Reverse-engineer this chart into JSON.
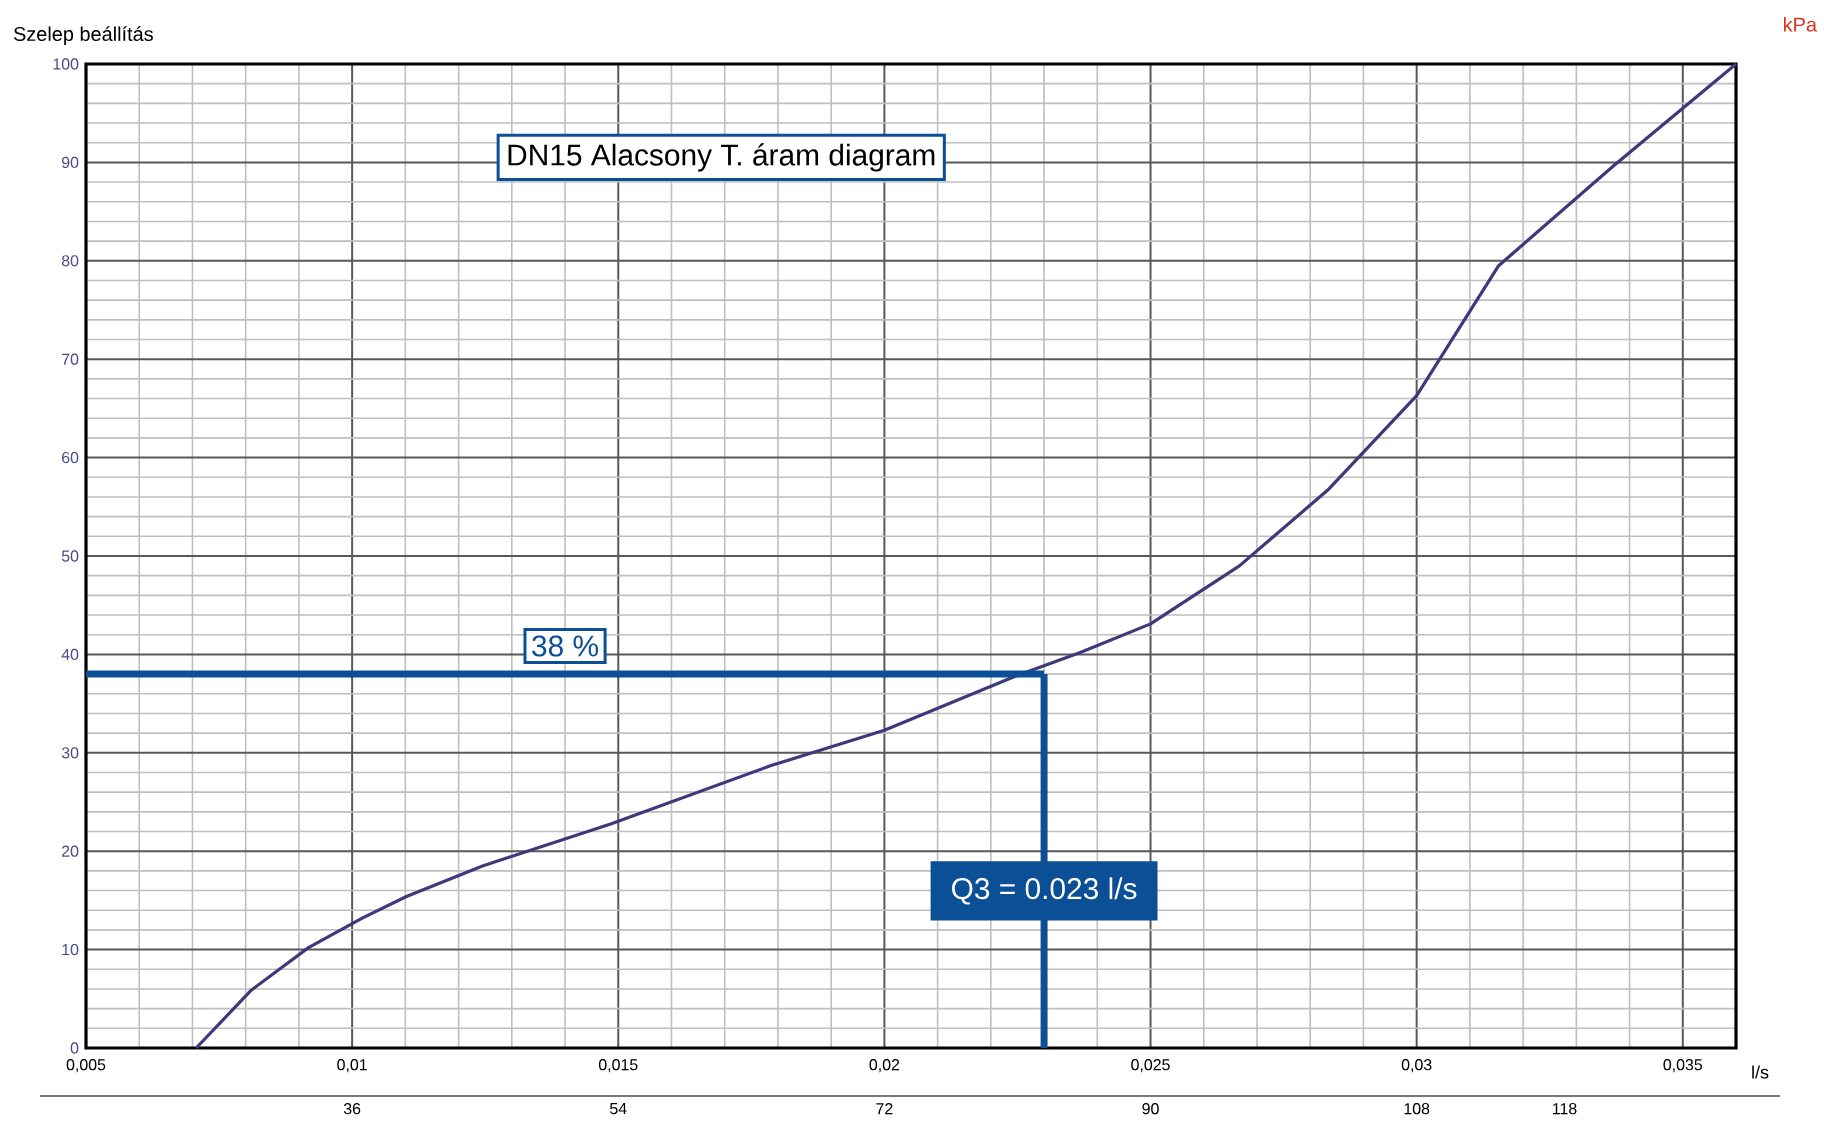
{
  "chart_data": {
    "type": "line",
    "title": "DN15 Alacsony T. áram diagram",
    "ylabel": "Szelep beállítás",
    "xlabel": "l/s",
    "xlim": [
      0.005,
      0.036
    ],
    "xticks": [
      {
        "value": 0.005,
        "label": "0,005"
      },
      {
        "value": 0.01,
        "label": "0,01"
      },
      {
        "value": 0.015,
        "label": "0,015"
      },
      {
        "value": 0.02,
        "label": "0,02"
      },
      {
        "value": 0.025,
        "label": "0,025"
      },
      {
        "value": 0.03,
        "label": "0,03"
      },
      {
        "value": 0.035,
        "label": "0,035"
      }
    ],
    "x2lim": [
      18,
      129.6
    ],
    "x2ticks": [
      36,
      54,
      72,
      90,
      108,
      118
    ],
    "ylim": [
      0,
      100
    ],
    "yticks": [
      0,
      10,
      20,
      30,
      40,
      50,
      60,
      70,
      80,
      90,
      100
    ],
    "grid": true,
    "line_style": "solid",
    "series": [
      {
        "color": "#3c3a7a",
        "x": [
          0.00707,
          0.00811,
          0.00918,
          0.01019,
          0.01102,
          0.01245,
          0.01487,
          0.01787,
          0.02,
          0.02247,
          0.02368,
          0.025,
          0.02667,
          0.02833,
          0.03,
          0.03154,
          0.03369,
          0.036
        ],
        "values": [
          0,
          5.9,
          10.2,
          13.2,
          15.4,
          18.5,
          22.8,
          28.7,
          32.3,
          37.8,
          40.2,
          43.1,
          49.0,
          56.7,
          66.3,
          79.5,
          89.6,
          100
        ]
      }
    ],
    "ref_lines": [
      {
        "axis": "y",
        "value": 38,
        "label": "38 %",
        "color": "#0b4f96"
      },
      {
        "axis": "x",
        "value": 0.023,
        "label": "Q3 = 0.023 l/s",
        "color": "#0b4f96"
      }
    ],
    "annotations": [
      "kPa"
    ]
  }
}
